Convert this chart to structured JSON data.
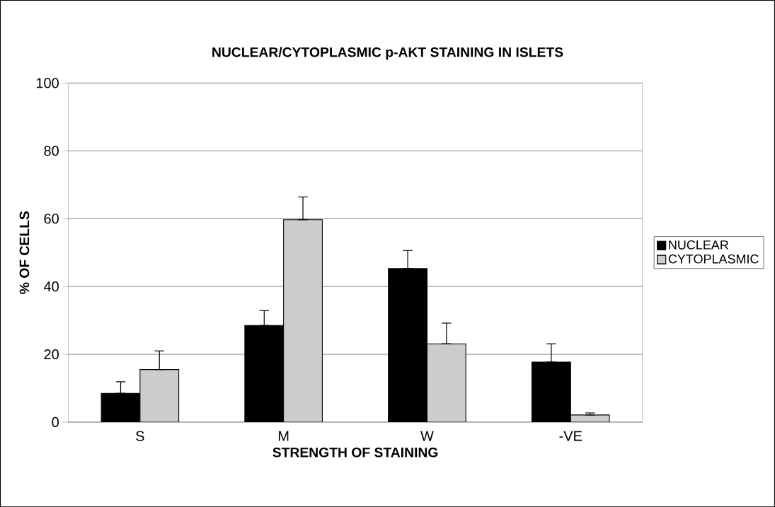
{
  "chart_data": {
    "type": "bar",
    "title": "NUCLEAR/CYTOPLASMIC p-AKT STAINING IN ISLETS",
    "xlabel": "STRENGTH OF STAINING",
    "ylabel": "% OF CELLS",
    "categories": [
      "S",
      "M",
      "W",
      "-VE"
    ],
    "series": [
      {
        "name": "NUCLEAR",
        "color": "#000000",
        "values": [
          8.5,
          28.5,
          45.3,
          17.7
        ],
        "errors": [
          [
            8.5,
            11.9
          ],
          [
            28.5,
            32.9
          ],
          [
            45.3,
            50.6
          ],
          [
            17.7,
            23.1
          ]
        ]
      },
      {
        "name": "CYTOPLASMIC",
        "color": "#cccccc",
        "values": [
          15.5,
          59.7,
          23.1,
          2.1
        ],
        "errors": [
          [
            15.5,
            21.0
          ],
          [
            59.7,
            66.4
          ],
          [
            23.1,
            29.2
          ],
          [
            2.1,
            2.7
          ]
        ]
      }
    ],
    "ylim": [
      0,
      100
    ],
    "yticks": [
      0,
      20,
      40,
      60,
      80,
      100
    ],
    "grid": "y",
    "legend": "right"
  }
}
